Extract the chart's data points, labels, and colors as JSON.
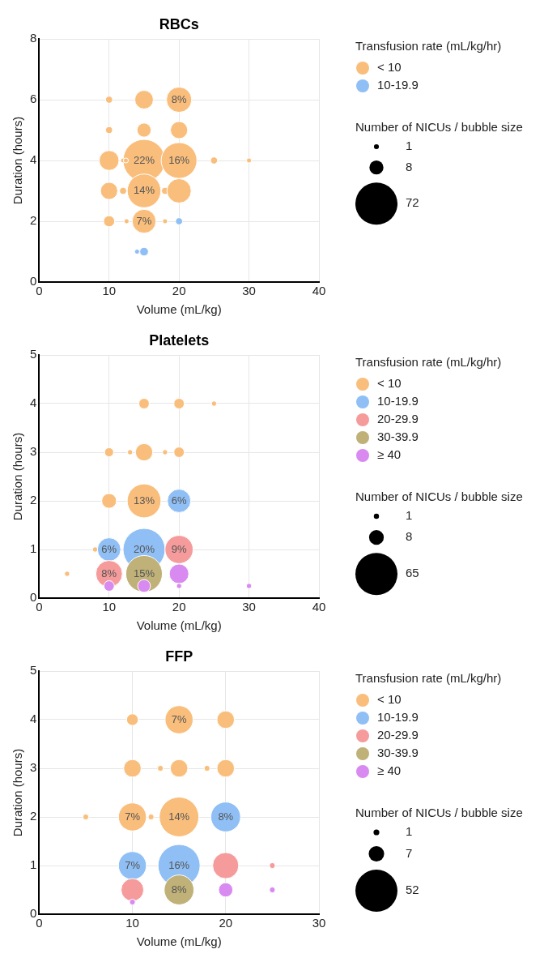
{
  "chart_data": [
    {
      "type": "bubble",
      "title": "RBCs",
      "xlabel": "Volume (mL/kg)",
      "ylabel": "Duration (hours)",
      "legend_title": "Transfusion rate (mL/kg/hr)",
      "annotations": [
        "Number of NICUs / bubble size",
        {
          "text": "8%",
          "x": 20,
          "y": 6
        },
        {
          "text": "22%",
          "x": 15,
          "y": 4
        },
        {
          "text": "16%",
          "x": 20,
          "y": 4
        },
        {
          "text": "14%",
          "x": 15,
          "y": 3
        },
        {
          "text": "7%",
          "x": 15,
          "y": 2
        }
      ],
      "xlim": [
        0,
        40
      ],
      "ylim": [
        0,
        8
      ],
      "xticks": [
        0,
        10,
        20,
        30,
        40
      ],
      "yticks": [
        0,
        2,
        4,
        6,
        8
      ],
      "grid": true,
      "legend": "top right",
      "size_legend": [
        1,
        8,
        72
      ],
      "series": [
        {
          "name": "< 10",
          "color": "#f9be7c",
          "x": [
            10,
            15,
            20,
            10,
            15,
            20,
            10,
            15,
            12,
            12.4,
            20,
            25,
            30,
            10,
            12,
            15,
            18,
            20,
            10,
            12.5,
            15,
            18
          ],
          "values": [
            6,
            6,
            6,
            5,
            5,
            5,
            4,
            4,
            4,
            4,
            4,
            4,
            4,
            3,
            3,
            3,
            3,
            3,
            2,
            2,
            2,
            2
          ],
          "sizes": [
            2,
            14,
            26,
            2,
            8,
            12,
            16,
            72,
            1,
            1,
            52,
            2,
            1,
            12,
            2,
            46,
            2,
            24,
            5,
            1,
            23,
            1
          ]
        },
        {
          "name": "10-19.9",
          "color": "#8fbff5",
          "x": [
            20,
            14,
            15
          ],
          "values": [
            2,
            1,
            1
          ],
          "sizes": [
            2,
            1,
            3
          ]
        }
      ]
    },
    {
      "type": "bubble",
      "title": "Platelets",
      "xlabel": "Volume (mL/kg)",
      "ylabel": "Duration (hours)",
      "legend_title": "Transfusion rate (mL/kg/hr)",
      "annotations": [
        "Number of NICUs / bubble size",
        {
          "text": "13%",
          "x": 15,
          "y": 2
        },
        {
          "text": "6%",
          "x": 20,
          "y": 2
        },
        {
          "text": "6%",
          "x": 10,
          "y": 1
        },
        {
          "text": "20%",
          "x": 15,
          "y": 1
        },
        {
          "text": "9%",
          "x": 20,
          "y": 1
        },
        {
          "text": "8%",
          "x": 10,
          "y": 0.5
        },
        {
          "text": "15%",
          "x": 15,
          "y": 0.5
        }
      ],
      "xlim": [
        0,
        40
      ],
      "ylim": [
        0,
        5
      ],
      "xticks": [
        0,
        10,
        20,
        30,
        40
      ],
      "yticks": [
        0,
        1,
        2,
        3,
        4,
        5
      ],
      "grid": true,
      "legend": "top right",
      "size_legend": [
        1,
        8,
        65
      ],
      "series": [
        {
          "name": "< 10",
          "color": "#f9be7c",
          "x": [
            15,
            20,
            25,
            10,
            13,
            15,
            18,
            20,
            10,
            15,
            8,
            4
          ],
          "values": [
            4,
            4,
            4,
            3,
            3,
            3,
            3,
            3,
            2,
            2,
            1,
            0.5
          ],
          "sizes": [
            4,
            4,
            1,
            3,
            1,
            11,
            1,
            4,
            8,
            42,
            1,
            1
          ]
        },
        {
          "name": "10-19.9",
          "color": "#8fbff5",
          "x": [
            20,
            10,
            15
          ],
          "values": [
            2,
            1,
            1
          ],
          "sizes": [
            20,
            20,
            65
          ]
        },
        {
          "name": "20-29.9",
          "color": "#f59b9b",
          "x": [
            20,
            10
          ],
          "values": [
            1,
            0.5
          ],
          "sizes": [
            29,
            26
          ]
        },
        {
          "name": "30-39.9",
          "color": "#bfb178",
          "x": [
            15
          ],
          "values": [
            0.5
          ],
          "sizes": [
            49
          ]
        },
        {
          "name": "≥ 40",
          "color": "#d88af0",
          "x": [
            20,
            10,
            15,
            20,
            30
          ],
          "values": [
            0.5,
            0.25,
            0.25,
            0.25,
            0.25
          ],
          "sizes": [
            14,
            4,
            6,
            1,
            1
          ]
        }
      ]
    },
    {
      "type": "bubble",
      "title": "FFP",
      "xlabel": "Volume (mL/kg)",
      "ylabel": "Duration (hours)",
      "legend_title": "Transfusion rate (mL/kg/hr)",
      "annotations": [
        "Number of NICUs / bubble size",
        {
          "text": "7%",
          "x": 15,
          "y": 4
        },
        {
          "text": "7%",
          "x": 10,
          "y": 2
        },
        {
          "text": "14%",
          "x": 15,
          "y": 2
        },
        {
          "text": "8%",
          "x": 20,
          "y": 2
        },
        {
          "text": "7%",
          "x": 10,
          "y": 1
        },
        {
          "text": "16%",
          "x": 15,
          "y": 1
        },
        {
          "text": "8%",
          "x": 15,
          "y": 0.5
        }
      ],
      "xlim": [
        0,
        30
      ],
      "ylim": [
        0,
        5
      ],
      "xticks": [
        0,
        10,
        20,
        30
      ],
      "yticks": [
        0,
        1,
        2,
        3,
        4,
        5
      ],
      "grid": true,
      "legend": "top right",
      "size_legend": [
        1,
        7,
        52
      ],
      "series": [
        {
          "name": "< 10",
          "color": "#f9be7c",
          "x": [
            10,
            15,
            20,
            10,
            13,
            15,
            18,
            20,
            5,
            10,
            12,
            15
          ],
          "values": [
            4,
            4,
            4,
            3,
            3,
            3,
            3,
            3,
            2,
            2,
            2,
            2
          ],
          "sizes": [
            4,
            23,
            9,
            9,
            1,
            9,
            1,
            9,
            1,
            23,
            1,
            46
          ]
        },
        {
          "name": "10-19.9",
          "color": "#8fbff5",
          "x": [
            20,
            10,
            15
          ],
          "values": [
            2,
            1,
            1
          ],
          "sizes": [
            26,
            23,
            52
          ]
        },
        {
          "name": "20-29.9",
          "color": "#f59b9b",
          "x": [
            20,
            25,
            10
          ],
          "values": [
            1,
            1,
            0.5
          ],
          "sizes": [
            20,
            1,
            15
          ]
        },
        {
          "name": "30-39.9",
          "color": "#bfb178",
          "x": [
            15
          ],
          "values": [
            0.5
          ],
          "sizes": [
            26
          ]
        },
        {
          "name": "≥ 40",
          "color": "#d88af0",
          "x": [
            20,
            25,
            10
          ],
          "values": [
            0.5,
            0.5,
            0.25
          ],
          "sizes": [
            6,
            1,
            1
          ]
        }
      ]
    }
  ]
}
